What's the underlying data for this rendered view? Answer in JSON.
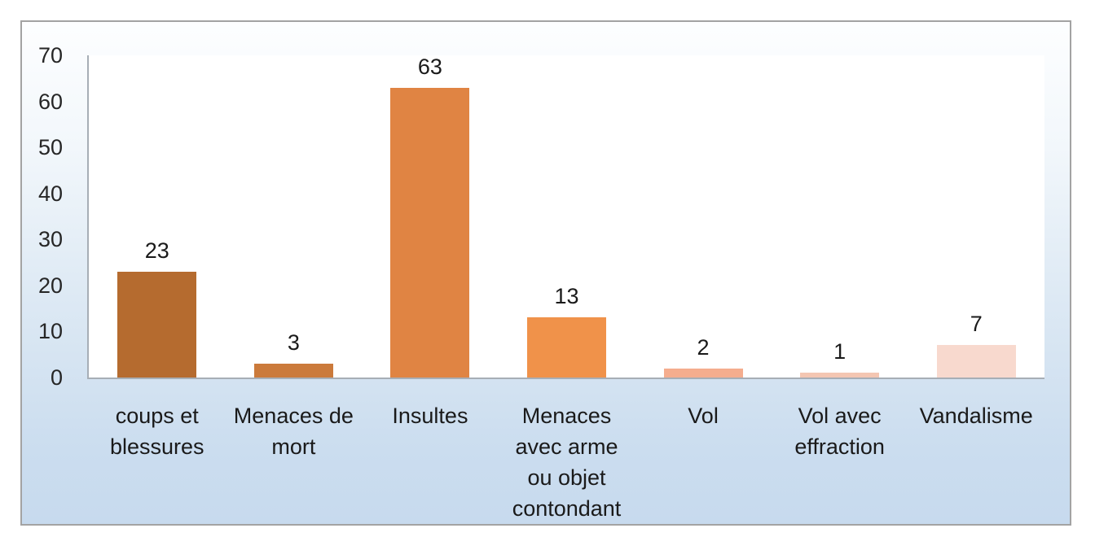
{
  "chart_data": {
    "type": "bar",
    "title": "",
    "xlabel": "",
    "ylabel": "",
    "categories": [
      "coups et blessures",
      "Menaces de mort",
      "Insultes",
      "Menaces avec arme ou objet contondant",
      "Vol",
      "Vol avec effraction",
      "Vandalisme"
    ],
    "values": [
      23,
      3,
      63,
      13,
      2,
      1,
      7
    ],
    "data_labels": [
      "23",
      "3",
      "63",
      "13",
      "2",
      "1",
      "7"
    ],
    "bar_colors": [
      "#b56b2f",
      "#cb7a3b",
      "#e08443",
      "#f0924a",
      "#f5ad8e",
      "#f4c6b2",
      "#f8d9ce"
    ],
    "yticks": [
      0,
      10,
      20,
      30,
      40,
      50,
      60,
      70
    ],
    "ylim": [
      0,
      70
    ],
    "grid": false,
    "legend": false,
    "colors": {
      "plot_background": "#ffffff",
      "frame_gradient_top": "#fdfeff",
      "frame_gradient_bottom": "#c7daee",
      "frame_border": "#a3a3a3",
      "axis_line": "#a7aeb6",
      "text": "#1a1a1a"
    }
  }
}
